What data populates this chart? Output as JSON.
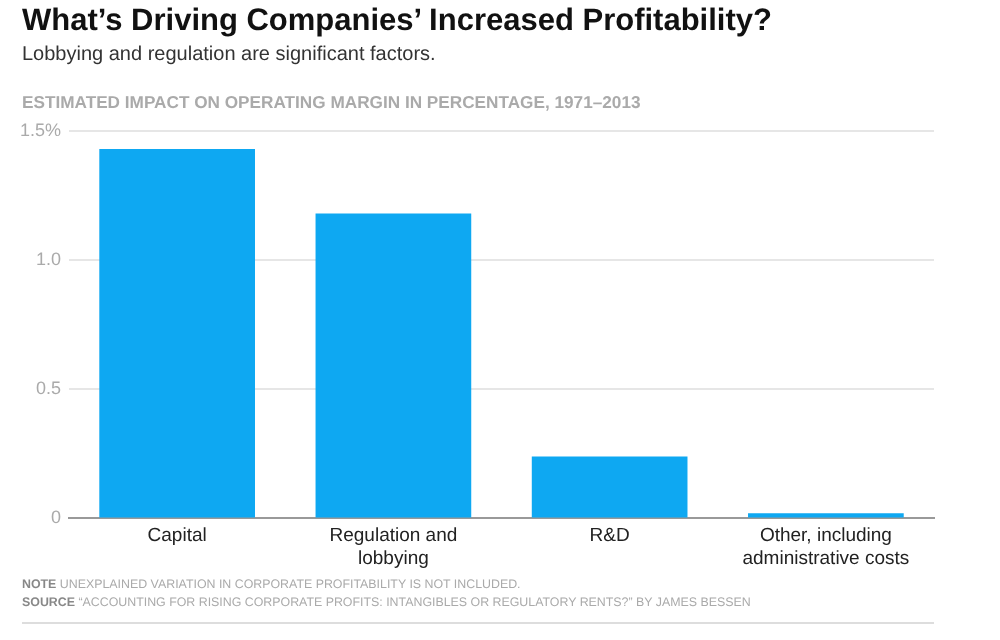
{
  "chart_data": {
    "type": "bar",
    "title": "What’s Driving Companies’ Increased Profitability?",
    "subtitle": "Lobbying and regulation are significant factors.",
    "ylabel": "ESTIMATED IMPACT ON OPERATING MARGIN IN PERCENTAGE, 1971–2013",
    "categories": [
      "Capital",
      "Regulation and lobbying",
      "R&D",
      "Other, including administrative costs"
    ],
    "values": [
      1.43,
      1.18,
      0.24,
      0.02
    ],
    "color": "#0ea8f2",
    "ylim": [
      0,
      1.5
    ],
    "yticks": [
      0,
      0.5,
      {
        "value": 1,
        "label": "1.0"
      },
      {
        "value": 1.5,
        "label": "1.5%"
      }
    ],
    "grid": "y",
    "annotations": [
      "NOTE UNEXPLAINED VARIATION IN CORPORATE PROFITABILITY IS NOT INCLUDED.",
      "SOURCE “ACCOUNTING FOR RISING CORPORATE PROFITS: INTANGIBLES OR REGULATORY RENTS?” BY JAMES BESSEN"
    ]
  }
}
